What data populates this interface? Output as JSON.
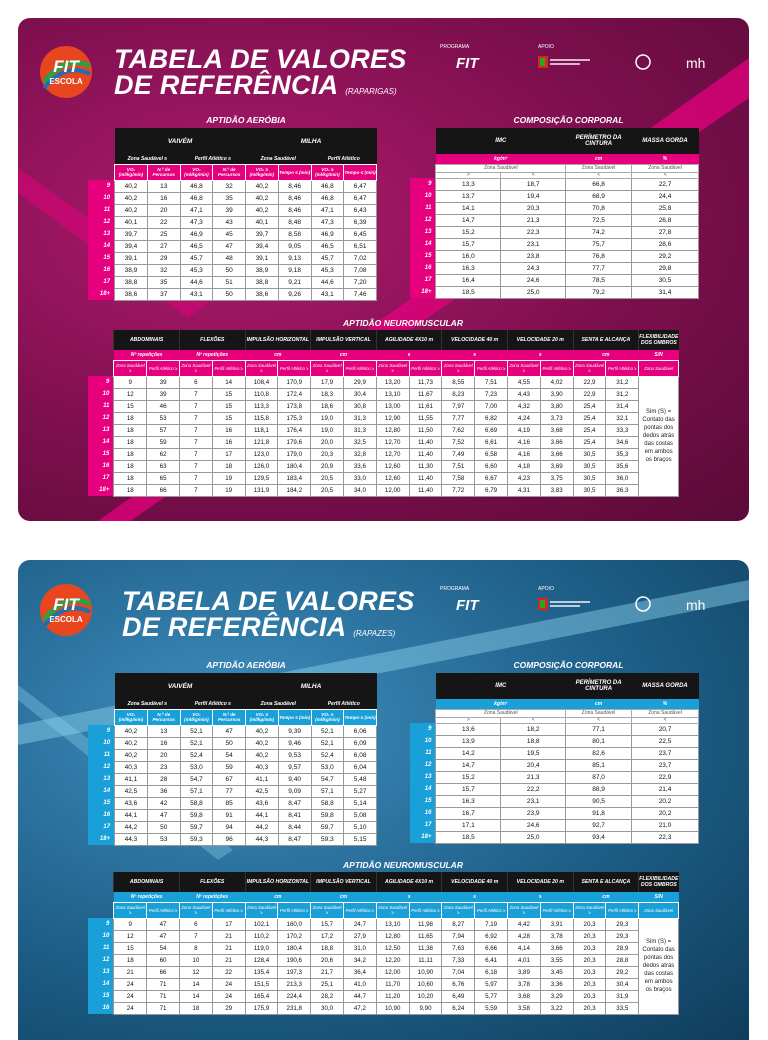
{
  "colors": {
    "girls_accent": "#e6007e",
    "boys_accent": "#1aa0d8"
  },
  "sponsors": {
    "programa": "PROGRAMA",
    "apoio": "APOIO"
  },
  "logo": {
    "line1": "FIT",
    "line2": "ESCOLA"
  },
  "girls": {
    "title_line1": "TABELA DE VALORES",
    "title_line2": "DE REFERÊNCIA",
    "title_sub": "(RAPARIGAS)",
    "aerobic": {
      "section": "APTIDÃO AERÓBIA",
      "groups": [
        "VAIVÉM",
        "MILHA"
      ],
      "subgroups": [
        "Zona Saudável ≥",
        "Perfil Atlético ≥",
        "Zona Saudável",
        "Perfil Atlético"
      ],
      "cols": [
        "VO₂ (ml/kg/min)",
        "N.º de Percursos",
        "VO₂ (ml/kg/min)",
        "N.º de Percursos",
        "VO₂ ≥ (ml/kg/min)",
        "Tempo ≤ (min)",
        "VO₂ ≥ (ml/kg/min)",
        "Tempo ≤ (min)"
      ],
      "rows": [
        [
          "9",
          "40,2",
          "13",
          "46,8",
          "32",
          "40,2",
          "8,46",
          "46,8",
          "6,47"
        ],
        [
          "10",
          "40,2",
          "16",
          "46,8",
          "35",
          "40,2",
          "8,46",
          "46,8",
          "6,47"
        ],
        [
          "11",
          "40,2",
          "20",
          "47,1",
          "39",
          "40,2",
          "8,46",
          "47,1",
          "6,43"
        ],
        [
          "12",
          "40,1",
          "22",
          "47,3",
          "43",
          "40,1",
          "8,48",
          "47,3",
          "6,39"
        ],
        [
          "13",
          "39,7",
          "25",
          "46,9",
          "45",
          "39,7",
          "8,58",
          "46,9",
          "6,45"
        ],
        [
          "14",
          "39,4",
          "27",
          "46,5",
          "47",
          "39,4",
          "9,05",
          "46,5",
          "6,51"
        ],
        [
          "15",
          "39,1",
          "29",
          "45,7",
          "48",
          "39,1",
          "9,13",
          "45,7",
          "7,02"
        ],
        [
          "16",
          "38,9",
          "32",
          "45,3",
          "50",
          "38,9",
          "9,18",
          "45,3",
          "7,08"
        ],
        [
          "17",
          "38,8",
          "35",
          "44,6",
          "51",
          "38,8",
          "9,21",
          "44,6",
          "7,20"
        ],
        [
          "18+",
          "38,6",
          "37",
          "43,1",
          "50",
          "38,6",
          "9,26",
          "43,1",
          "7,46"
        ]
      ]
    },
    "body": {
      "section": "COMPOSIÇÃO CORPORAL",
      "groups": [
        "IMC",
        "PERÍMETRO DA CINTURA",
        "MASSA GORDA"
      ],
      "units": [
        "kg/m²",
        "cm",
        "%"
      ],
      "zones": [
        "Zona Saudável",
        "Zona Saudável",
        "Zona Saudável"
      ],
      "signs": [
        ">",
        "<",
        "<",
        "<"
      ],
      "rows": [
        [
          "9",
          "13,3",
          "18,7",
          "66,8",
          "22,7"
        ],
        [
          "10",
          "13,7",
          "19,4",
          "68,9",
          "24,4"
        ],
        [
          "11",
          "14,1",
          "20,3",
          "70,8",
          "25,8"
        ],
        [
          "12",
          "14,7",
          "21,3",
          "72,5",
          "26,8"
        ],
        [
          "13",
          "15,2",
          "22,3",
          "74,2",
          "27,8"
        ],
        [
          "14",
          "15,7",
          "23,1",
          "75,7",
          "28,6"
        ],
        [
          "15",
          "16,0",
          "23,8",
          "76,8",
          "29,2"
        ],
        [
          "16",
          "16,3",
          "24,3",
          "77,7",
          "29,8"
        ],
        [
          "17",
          "16,4",
          "24,6",
          "78,5",
          "30,5"
        ],
        [
          "18+",
          "18,5",
          "25,0",
          "79,2",
          "31,4"
        ]
      ]
    },
    "neuro": {
      "section": "APTIDÃO NEUROMUSCULAR",
      "groups": [
        "ABDOMINAIS",
        "FLEXÕES",
        "IMPULSÃO HORIZONTAL",
        "IMPULSÃO VERTICAL",
        "AGILIDADE 4X10 m",
        "VELOCIDADE 40 m",
        "VELOCIDADE 20 m",
        "SENTA E ALCANÇA",
        "FLEXIBILIDADE DOS OMBROS"
      ],
      "units": [
        "Nº repetições",
        "Nº repetições",
        "cm",
        "cm",
        "s",
        "s",
        "s",
        "cm",
        "S/N"
      ],
      "zone_headers": [
        "Zona Saudável ≥",
        "Perfil Atlético ≥"
      ],
      "last_header": "Zona Saudável",
      "note": "Sim (S) = Contato das pontas dos dedos atrás das costas em ambos os braços",
      "rows": [
        [
          "9",
          "9",
          "39",
          "6",
          "14",
          "108,4",
          "170,9",
          "17,9",
          "29,9",
          "13,20",
          "11,73",
          "8,55",
          "7,51",
          "4,55",
          "4,02",
          "22,9",
          "31,2"
        ],
        [
          "10",
          "12",
          "39",
          "7",
          "15",
          "110,8",
          "172,4",
          "18,3",
          "30,4",
          "13,10",
          "11,67",
          "8,23",
          "7,23",
          "4,43",
          "3,90",
          "22,9",
          "31,2"
        ],
        [
          "11",
          "15",
          "46",
          "7",
          "15",
          "113,3",
          "173,8",
          "18,6",
          "30,8",
          "13,00",
          "11,61",
          "7,97",
          "7,00",
          "4,32",
          "3,80",
          "25,4",
          "31,4"
        ],
        [
          "12",
          "18",
          "53",
          "7",
          "15",
          "115,8",
          "175,3",
          "19,0",
          "31,3",
          "12,90",
          "11,55",
          "7,77",
          "6,82",
          "4,24",
          "3,73",
          "25,4",
          "32,1"
        ],
        [
          "13",
          "18",
          "57",
          "7",
          "16",
          "118,1",
          "176,4",
          "19,0",
          "31,3",
          "12,80",
          "11,50",
          "7,62",
          "6,69",
          "4,19",
          "3,68",
          "25,4",
          "33,3"
        ],
        [
          "14",
          "18",
          "59",
          "7",
          "16",
          "121,8",
          "179,6",
          "20,0",
          "32,5",
          "12,70",
          "11,40",
          "7,52",
          "6,61",
          "4,16",
          "3,66",
          "25,4",
          "34,6"
        ],
        [
          "15",
          "18",
          "62",
          "7",
          "17",
          "123,0",
          "179,0",
          "20,3",
          "32,8",
          "12,70",
          "11,40",
          "7,49",
          "6,58",
          "4,16",
          "3,66",
          "30,5",
          "35,3"
        ],
        [
          "16",
          "18",
          "63",
          "7",
          "18",
          "126,0",
          "180,4",
          "20,9",
          "33,6",
          "12,60",
          "11,30",
          "7,51",
          "6,60",
          "4,18",
          "3,69",
          "30,5",
          "35,6"
        ],
        [
          "17",
          "18",
          "65",
          "7",
          "19",
          "129,5",
          "183,4",
          "20,5",
          "33,0",
          "12,60",
          "11,40",
          "7,58",
          "6,67",
          "4,23",
          "3,75",
          "30,5",
          "36,0"
        ],
        [
          "18+",
          "18",
          "66",
          "7",
          "19",
          "131,9",
          "184,2",
          "20,5",
          "34,0",
          "12,00",
          "11,40",
          "7,72",
          "6,79",
          "4,31",
          "3,83",
          "30,5",
          "36,3"
        ]
      ]
    }
  },
  "boys": {
    "title_line1": "TABELA DE VALORES",
    "title_line2": "DE REFERÊNCIA",
    "title_sub": "(RAPAZES)",
    "aerobic": {
      "section": "APTIDÃO AERÓBIA",
      "groups": [
        "VAIVÉM",
        "MILHA"
      ],
      "subgroups": [
        "Zona Saudável ≥",
        "Perfil Atlético ≥",
        "Zona Saudável",
        "Perfil Atlético"
      ],
      "cols": [
        "VO₂ (ml/kg/min)",
        "N.º de Percursos",
        "VO₂ (ml/kg/min)",
        "N.º de Percursos",
        "VO₂ ≥ (ml/kg/min)",
        "Tempo ≤ (min)",
        "VO₂ ≥ (ml/kg/min)",
        "Tempo ≤ (min)"
      ],
      "rows": [
        [
          "9",
          "40,2",
          "13",
          "52,1",
          "47",
          "40,2",
          "9,39",
          "52,1",
          "6,06"
        ],
        [
          "10",
          "40,2",
          "16",
          "52,1",
          "50",
          "40,2",
          "9,46",
          "52,1",
          "6,09"
        ],
        [
          "11",
          "40,2",
          "20",
          "52,4",
          "54",
          "40,2",
          "9,53",
          "52,4",
          "6,08"
        ],
        [
          "12",
          "40,3",
          "23",
          "53,0",
          "59",
          "40,3",
          "9,57",
          "53,0",
          "6,04"
        ],
        [
          "13",
          "41,1",
          "28",
          "54,7",
          "67",
          "41,1",
          "9,40",
          "54,7",
          "5,48"
        ],
        [
          "14",
          "42,5",
          "36",
          "57,1",
          "77",
          "42,5",
          "9,09",
          "57,1",
          "5,27"
        ],
        [
          "15",
          "43,6",
          "42",
          "58,8",
          "85",
          "43,6",
          "8,47",
          "58,8",
          "5,14"
        ],
        [
          "16",
          "44,1",
          "47",
          "59,8",
          "91",
          "44,1",
          "8,41",
          "59,8",
          "5,08"
        ],
        [
          "17",
          "44,2",
          "50",
          "59,7",
          "94",
          "44,2",
          "8,44",
          "59,7",
          "5,10"
        ],
        [
          "18+",
          "44,3",
          "53",
          "59,3",
          "96",
          "44,3",
          "8,47",
          "59,3",
          "5,15"
        ]
      ]
    },
    "body": {
      "section": "COMPOSIÇÃO CORPORAL",
      "groups": [
        "IMC",
        "PERÍMETRO DA CINTURA",
        "MASSA GORDA"
      ],
      "units": [
        "kg/m²",
        "cm",
        "%"
      ],
      "zones": [
        "Zona Saudável",
        "Zona Saudável",
        "Zona Saudável"
      ],
      "signs": [
        ">",
        "<",
        "<",
        "<"
      ],
      "rows": [
        [
          "9",
          "13,6",
          "18,2",
          "77,1",
          "20,7"
        ],
        [
          "10",
          "13,9",
          "18,8",
          "80,1",
          "22,5"
        ],
        [
          "11",
          "14,2",
          "19,5",
          "82,6",
          "23,7"
        ],
        [
          "12",
          "14,7",
          "20,4",
          "85,1",
          "23,7"
        ],
        [
          "13",
          "15,2",
          "21,3",
          "87,0",
          "22,9"
        ],
        [
          "14",
          "15,7",
          "22,2",
          "88,9",
          "21,4"
        ],
        [
          "15",
          "16,3",
          "23,1",
          "90,5",
          "20,2"
        ],
        [
          "16",
          "16,7",
          "23,9",
          "91,8",
          "20,2"
        ],
        [
          "17",
          "17,1",
          "24,6",
          "92,7",
          "21,0"
        ],
        [
          "18+",
          "18,5",
          "25,0",
          "93,4",
          "22,3"
        ]
      ]
    },
    "neuro": {
      "section": "APTIDÃO NEUROMUSCULAR",
      "groups": [
        "ABDOMINAIS",
        "FLEXÕES",
        "IMPULSÃO HORIZONTAL",
        "IMPULSÃO VERTICAL",
        "AGILIDADE 4X10 m",
        "VELOCIDADE 40 m",
        "VELOCIDADE 20 m",
        "SENTA E ALCANÇA",
        "FLEXIBILIDADE DOS OMBROS"
      ],
      "units": [
        "Nº repetições",
        "Nº repetições",
        "cm",
        "cm",
        "s",
        "s",
        "s",
        "cm",
        "S/N"
      ],
      "zone_headers": [
        "Zona Saudável ≥",
        "Perfil Atlético ≥"
      ],
      "last_header": "Zona Saudável",
      "note": "Sim (S) = Contato das pontas dos dedos atrás das costas em ambos os braços",
      "rows": [
        [
          "9",
          "9",
          "47",
          "6",
          "17",
          "102,1",
          "160,0",
          "15,7",
          "24,7",
          "13,10",
          "11,98",
          "8,27",
          "7,19",
          "4,42",
          "3,91",
          "20,3",
          "29,3"
        ],
        [
          "10",
          "12",
          "47",
          "7",
          "21",
          "110,2",
          "170,2",
          "17,2",
          "27,9",
          "12,80",
          "11,65",
          "7,94",
          "6,92",
          "4,28",
          "3,78",
          "20,3",
          "29,3"
        ],
        [
          "11",
          "15",
          "54",
          "8",
          "21",
          "119,0",
          "180,4",
          "18,8",
          "31,0",
          "12,50",
          "11,38",
          "7,63",
          "6,66",
          "4,14",
          "3,66",
          "20,3",
          "28,9"
        ],
        [
          "12",
          "18",
          "60",
          "10",
          "21",
          "128,4",
          "190,6",
          "20,6",
          "34,2",
          "12,20",
          "11,11",
          "7,33",
          "6,41",
          "4,01",
          "3,55",
          "20,3",
          "28,8"
        ],
        [
          "13",
          "21",
          "66",
          "12",
          "22",
          "135,4",
          "197,3",
          "21,7",
          "36,4",
          "12,00",
          "10,90",
          "7,04",
          "6,18",
          "3,89",
          "3,45",
          "20,3",
          "29,2"
        ],
        [
          "14",
          "24",
          "71",
          "14",
          "24",
          "151,5",
          "213,3",
          "25,1",
          "41,0",
          "11,70",
          "10,60",
          "6,76",
          "5,97",
          "3,78",
          "3,36",
          "20,3",
          "30,4"
        ],
        [
          "15",
          "24",
          "71",
          "14",
          "24",
          "165,4",
          "224,4",
          "28,2",
          "44,7",
          "11,20",
          "10,20",
          "6,49",
          "5,77",
          "3,68",
          "3,29",
          "20,3",
          "31,9"
        ],
        [
          "16",
          "24",
          "71",
          "18",
          "29",
          "175,9",
          "231,8",
          "30,0",
          "47,2",
          "10,90",
          "9,90",
          "6,24",
          "5,59",
          "3,58",
          "3,22",
          "20,3",
          "33,5"
        ]
      ]
    }
  }
}
